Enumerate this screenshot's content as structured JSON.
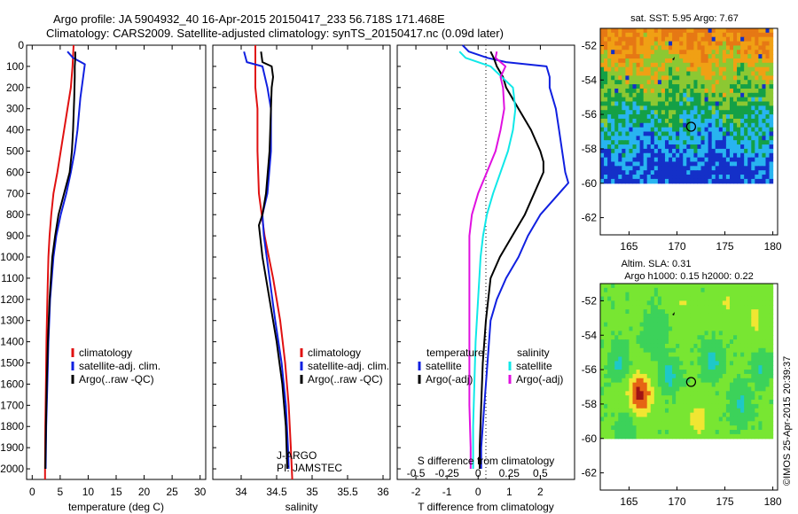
{
  "header": {
    "line1": "Argo profile: JA 5904932_40 16-Apr-2015 20150417_233 56.718S 171.468E",
    "line2": "Climatology: CARS2009. Satellite-adjusted climatology: synTS_20150417.nc (0.09d later)"
  },
  "side_texts": {
    "credit": "©IMOS 25-Apr-2015 20:39:37",
    "float_id": "J-ARGO",
    "pi": "PI: JAMSTEC"
  },
  "colors": {
    "climatology": "#e01010",
    "satellite": "#1020e0",
    "argo": "#000000",
    "salinity_satellite": "#10e8e8",
    "salinity_argo": "#e010e0"
  },
  "chart_data": [
    {
      "id": "temperature",
      "type": "line",
      "xlabel": "temperature (deg C)",
      "ylabel": "",
      "xlim": [
        -1,
        31
      ],
      "ylim": [
        2050,
        0
      ],
      "xticks": [
        0,
        5,
        10,
        15,
        20,
        25,
        30
      ],
      "yticks": [
        0,
        100,
        200,
        300,
        400,
        500,
        600,
        700,
        800,
        900,
        1000,
        1100,
        1200,
        1300,
        1400,
        1500,
        1600,
        1700,
        1800,
        1900,
        2000
      ],
      "legend": {
        "position": "lower-middle",
        "entries": [
          "climatology",
          "satellite-adj. clim.",
          "Argo(..raw -QC)"
        ]
      },
      "series": [
        {
          "name": "climatology",
          "color": "#e01010",
          "depth": [
            0,
            50,
            100,
            200,
            300,
            400,
            500,
            600,
            700,
            800,
            900,
            1000,
            1200,
            1400,
            1600,
            1800,
            2000,
            2050
          ],
          "values": [
            7.4,
            7.3,
            7.2,
            6.9,
            6.3,
            5.7,
            5.1,
            4.5,
            3.8,
            3.4,
            3.1,
            2.9,
            2.7,
            2.55,
            2.45,
            2.35,
            2.3,
            2.3
          ]
        },
        {
          "name": "satellite-adj. clim.",
          "color": "#1020e0",
          "depth": [
            30,
            60,
            90,
            150,
            250,
            400,
            500,
            600,
            700,
            800,
            900,
            1000,
            1200,
            1400,
            1600,
            1800,
            2000
          ],
          "values": [
            6.3,
            7.3,
            9.4,
            9.1,
            8.6,
            8.1,
            7.6,
            6.9,
            6.1,
            5.1,
            4.3,
            3.8,
            3.2,
            2.9,
            2.7,
            2.5,
            2.4
          ]
        },
        {
          "name": "Argo(..raw -QC)",
          "color": "#000000",
          "depth": [
            30,
            60,
            100,
            150,
            250,
            400,
            500,
            600,
            700,
            800,
            900,
            1000,
            1200,
            1400,
            1600,
            1800,
            2000
          ],
          "values": [
            7.7,
            7.7,
            7.6,
            7.6,
            7.5,
            7.3,
            7.1,
            6.7,
            5.7,
            4.7,
            4.1,
            3.6,
            3.1,
            2.8,
            2.6,
            2.45,
            2.35
          ]
        }
      ]
    },
    {
      "id": "salinity",
      "type": "line",
      "xlabel": "salinity",
      "ylabel": "",
      "xlim": [
        33.6,
        36.1
      ],
      "ylim": [
        2050,
        0
      ],
      "xticks": [
        34,
        34.5,
        35,
        35.5,
        36
      ],
      "legend": {
        "position": "lower-right",
        "entries": [
          "climatology",
          "satellite-adj. clim.",
          "Argo(..raw -QC)"
        ]
      },
      "series": [
        {
          "name": "climatology",
          "color": "#e01010",
          "depth": [
            0,
            50,
            100,
            200,
            300,
            500,
            700,
            900,
            1100,
            1300,
            1500,
            1700,
            1900,
            2050
          ],
          "values": [
            34.2,
            34.2,
            34.2,
            34.2,
            34.23,
            34.23,
            34.25,
            34.33,
            34.45,
            34.55,
            34.62,
            34.67,
            34.7,
            34.72
          ]
        },
        {
          "name": "satellite-adj. clim.",
          "color": "#1020e0",
          "depth": [
            30,
            80,
            100,
            200,
            300,
            500,
            700,
            800,
            900,
            1100,
            1300,
            1500,
            1700,
            1900,
            2000
          ],
          "values": [
            34.04,
            34.08,
            34.3,
            34.37,
            34.42,
            34.42,
            34.37,
            34.3,
            34.32,
            34.4,
            34.48,
            34.57,
            34.63,
            34.66,
            34.67
          ]
        },
        {
          "name": "Argo(..raw -QC)",
          "color": "#000000",
          "depth": [
            30,
            80,
            100,
            150,
            200,
            300,
            500,
            700,
            800,
            850,
            1000,
            1200,
            1400,
            1600,
            1800,
            2000
          ],
          "values": [
            34.28,
            34.3,
            34.43,
            34.45,
            34.43,
            34.42,
            34.4,
            34.35,
            34.3,
            34.25,
            34.3,
            34.4,
            34.5,
            34.58,
            34.63,
            34.65
          ]
        }
      ]
    },
    {
      "id": "difference",
      "type": "line",
      "xlabel": "T difference from climatology",
      "xlabel2": "S difference from climatology",
      "xlim": [
        -2.6,
        3.1
      ],
      "ylim": [
        2050,
        0
      ],
      "xticks": [
        -2,
        -1,
        0,
        1,
        2
      ],
      "xticks2": [
        "-0.5",
        "-0.25",
        "0",
        "0.25",
        "0.5"
      ],
      "legend": {
        "position": "lower-middle",
        "temperature_header": "temperature",
        "salinity_header": "salinity",
        "entries": [
          "satellite",
          "Argo(-adj)",
          "satellite",
          "Argo(-adj)"
        ]
      },
      "series": [
        {
          "name": "temperature satellite",
          "color": "#1020e0",
          "depth": [
            0,
            30,
            60,
            80,
            100,
            150,
            200,
            300,
            400,
            500,
            600,
            650,
            700,
            800,
            900,
            1000,
            1100,
            1200,
            1300,
            1500,
            1700,
            1900,
            2000
          ],
          "values": [
            -0.5,
            -0.3,
            0.3,
            0.9,
            2.2,
            2.3,
            2.3,
            2.5,
            2.6,
            2.7,
            2.8,
            2.9,
            2.6,
            2.0,
            1.6,
            1.3,
            0.9,
            0.6,
            0.4,
            0.3,
            0.2,
            0.1,
            0.1
          ]
        },
        {
          "name": "temperature Argo(-adj)",
          "color": "#000000",
          "depth": [
            30,
            60,
            100,
            150,
            200,
            300,
            400,
            500,
            550,
            600,
            700,
            800,
            900,
            1000,
            1100,
            1300,
            1500,
            1700,
            1900,
            2000
          ],
          "values": [
            0.4,
            0.5,
            0.6,
            0.8,
            0.9,
            1.3,
            1.7,
            2.0,
            2.1,
            2.1,
            1.8,
            1.5,
            1.1,
            0.7,
            0.4,
            0.25,
            0.15,
            0.1,
            0.05,
            0.05
          ]
        },
        {
          "name": "salinity satellite",
          "color": "#10e8e8",
          "depth": [
            30,
            60,
            100,
            200,
            300,
            400,
            500,
            600,
            700,
            800,
            900,
            1000,
            1200,
            1400,
            1600,
            1800,
            2000
          ],
          "values": [
            -0.15,
            -0.1,
            0.1,
            0.28,
            0.3,
            0.28,
            0.24,
            0.18,
            0.12,
            0.07,
            0.04,
            0.02,
            0.0,
            -0.02,
            -0.03,
            -0.04,
            -0.04
          ]
        },
        {
          "name": "salinity Argo(-adj)",
          "color": "#e010e0",
          "depth": [
            30,
            60,
            100,
            150,
            200,
            300,
            400,
            500,
            600,
            700,
            800,
            900,
            1100,
            1300,
            1500,
            1700,
            1900,
            2000
          ],
          "values": [
            0.15,
            0.14,
            0.22,
            0.18,
            0.2,
            0.21,
            0.18,
            0.14,
            0.07,
            0.0,
            -0.05,
            -0.07,
            -0.07,
            -0.07,
            -0.07,
            -0.07,
            -0.06,
            -0.06
          ]
        }
      ]
    },
    {
      "id": "sst_map",
      "type": "heatmap",
      "title": "sat. SST: 5.95 Argo: 7.67",
      "xlim": [
        162,
        180.5
      ],
      "ylim": [
        -63,
        -51
      ],
      "xticks": [
        165,
        170,
        175,
        180
      ],
      "yticks": [
        -52,
        -54,
        -56,
        -58,
        -60,
        -62
      ],
      "data_extent_lat": [
        -51,
        -60
      ],
      "argo_position": [
        171.468,
        -56.718
      ],
      "colors": [
        "#1430c8",
        "#28b4f0",
        "#14a046",
        "#8cc832",
        "#f0a014",
        "#e67814"
      ]
    },
    {
      "id": "sla_map",
      "type": "heatmap",
      "title": "Altim. SLA: 0.31",
      "subtitle": "Argo h1000: 0.15 h2000: 0.22",
      "xlim": [
        162,
        180.5
      ],
      "ylim": [
        -63,
        -51
      ],
      "xticks": [
        165,
        170,
        175,
        180
      ],
      "yticks": [
        -52,
        -54,
        -56,
        -58,
        -60,
        -62
      ],
      "data_extent_lat": [
        -51,
        -60
      ],
      "argo_position": [
        171.468,
        -56.718
      ],
      "colors": [
        "#1e78c8",
        "#1ec8c8",
        "#3cd25a",
        "#78e632",
        "#f0e632",
        "#e66414",
        "#a01414"
      ]
    }
  ]
}
